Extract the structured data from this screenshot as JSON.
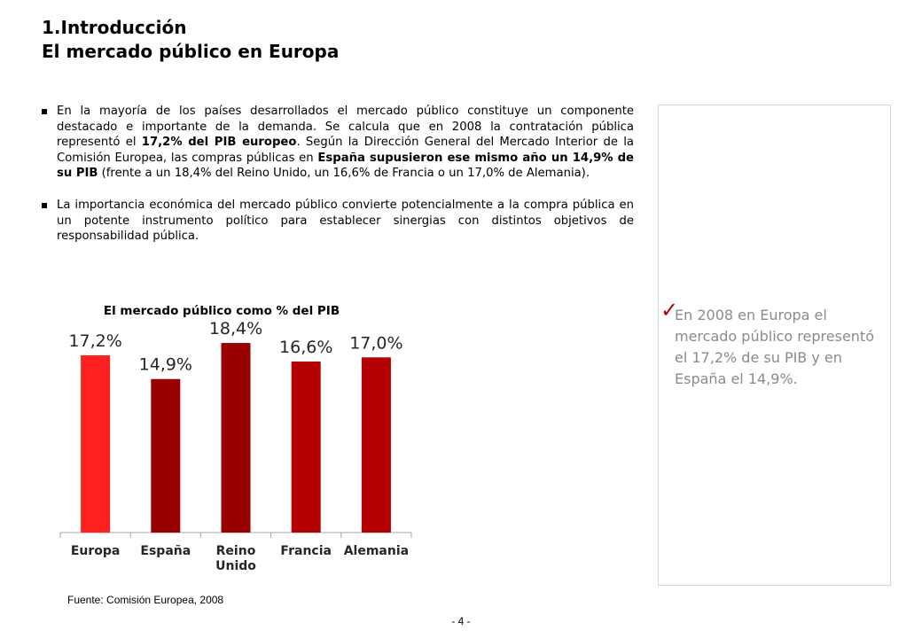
{
  "header": {
    "title_line1": "1.Introducción",
    "title_line2": "El mercado público en Europa"
  },
  "bullets": [
    {
      "segments": [
        {
          "text": "En la mayoría de los países desarrollados el mercado público constituye un componente destacado e importante de la demanda. Se calcula que en 2008 la contratación pública representó el ",
          "bold": false
        },
        {
          "text": "17,2% del PIB europeo",
          "bold": true
        },
        {
          "text": ". Según la Dirección General del Mercado Interior de la Comisión Europea, las compras públicas en ",
          "bold": false
        },
        {
          "text": "España supusieron ese mismo año un 14,9% de su PIB",
          "bold": true
        },
        {
          "text": " (frente a un 18,4% del Reino Unido, un 16,6% de Francia o un 17,0% de Alemania).",
          "bold": false
        }
      ]
    },
    {
      "segments": [
        {
          "text": "La importancia económica del mercado público convierte potencialmente a la compra pública en un potente instrumento político para establecer sinergias con distintos objetivos de responsabilidad pública.",
          "bold": false
        }
      ]
    }
  ],
  "chart_data": {
    "type": "bar",
    "title": "El mercado público como % del PIB",
    "categories": [
      "Europa",
      "España",
      "Reino Unido",
      "Francia",
      "Alemania"
    ],
    "values": [
      17.2,
      14.9,
      18.4,
      16.6,
      17.0
    ],
    "data_labels": [
      "17,2%",
      "14,9%",
      "18,4%",
      "16,6%",
      "17,0%"
    ],
    "colors": [
      "#ff2020",
      "#990000",
      "#990000",
      "#b30000",
      "#b30000"
    ],
    "ylim": [
      0,
      21.5
    ],
    "grid": false,
    "legend": "none"
  },
  "source": "Fuente: Comisión Europea, 2008",
  "page_number": "- 4 -",
  "sidebox": {
    "icon": "check-icon",
    "check_color": "#b30000",
    "text": "En 2008 en Europa el mercado público representó el 17,2% de su PIB y en España el 14,9%."
  }
}
